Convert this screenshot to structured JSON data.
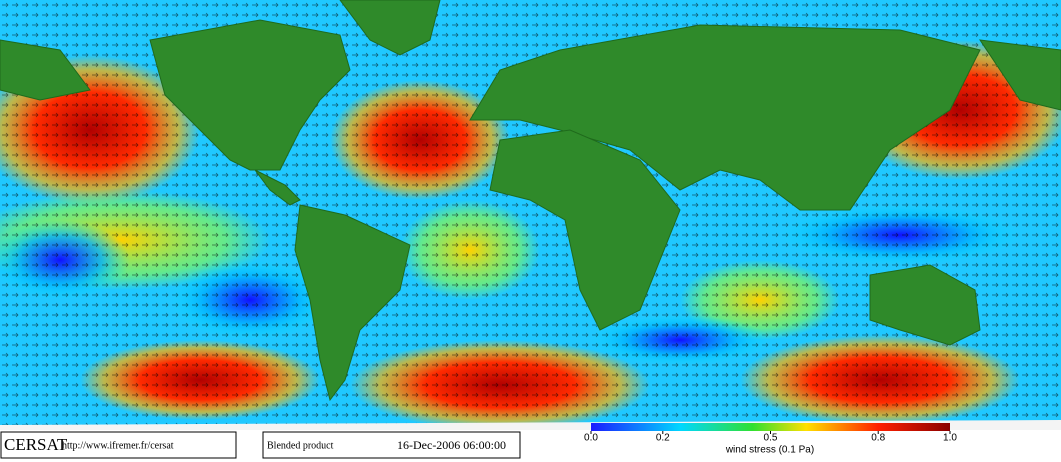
{
  "logo": "CERSAT",
  "url": "http://www.ifremer.fr/cersat",
  "product": "Blended product",
  "timestamp": "16-Dec-2006 06:00:00",
  "colorbar": {
    "label": "wind stress (0.1 Pa)",
    "range": [
      0,
      1
    ],
    "ticks": [
      {
        "value": 0,
        "label": "0.0"
      },
      {
        "value": 0.2,
        "label": "0.2"
      },
      {
        "value": 0.5,
        "label": "0.5"
      },
      {
        "value": 0.8,
        "label": "0.8"
      },
      {
        "value": 1,
        "label": "1.0"
      }
    ]
  }
}
